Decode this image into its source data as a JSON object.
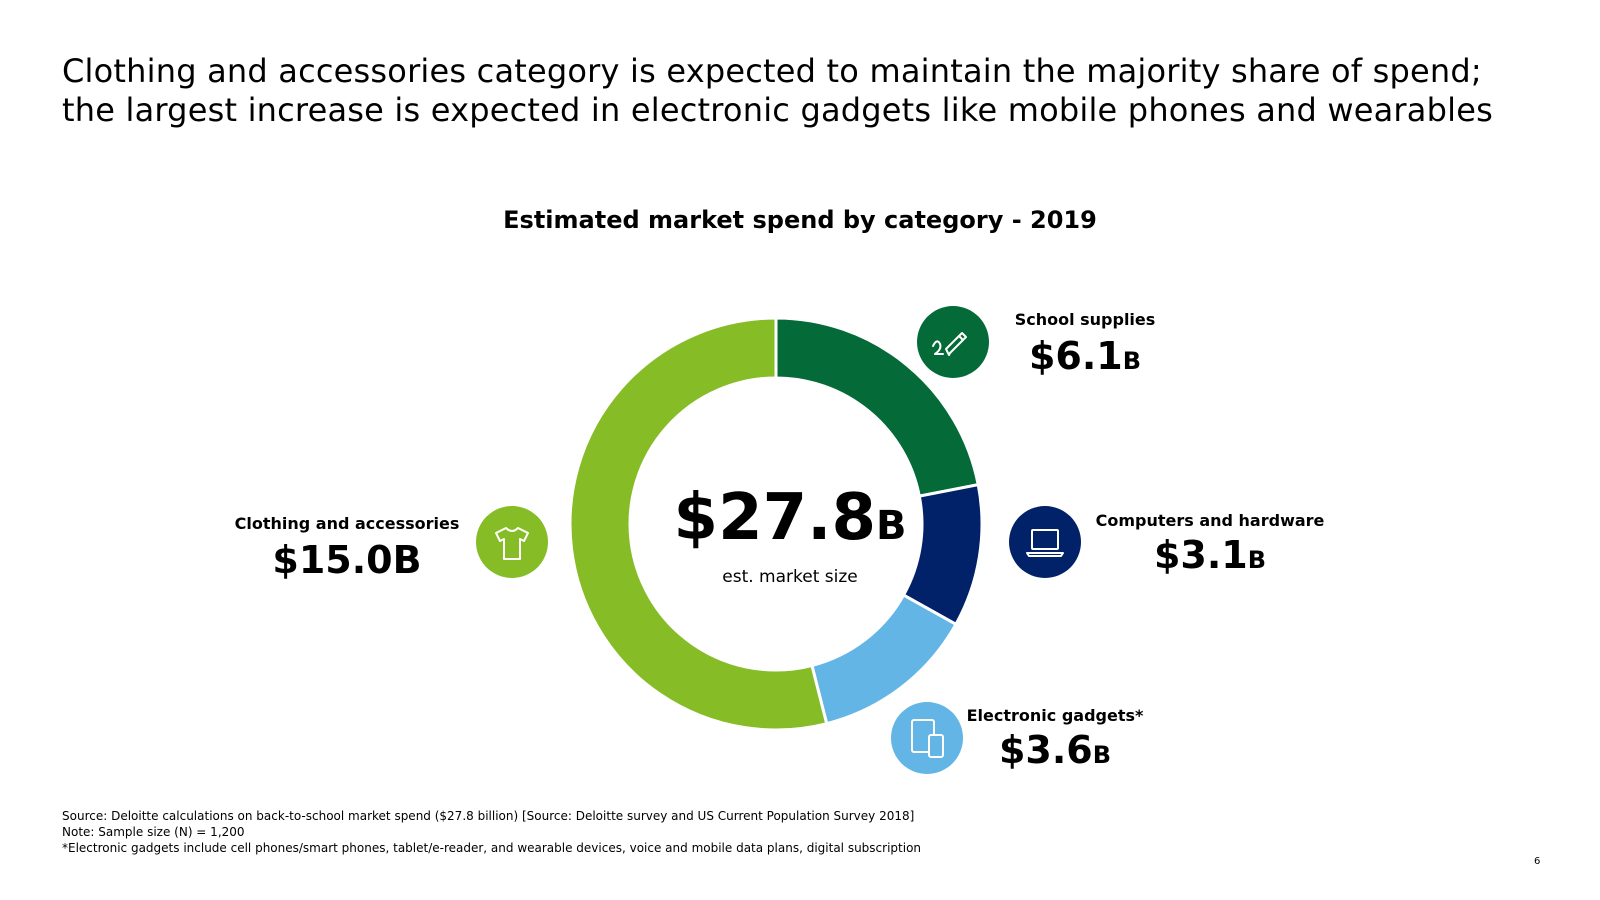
{
  "headline": {
    "line1": "Clothing and accessories category is expected to maintain the majority share of spend;",
    "line2": "the largest increase is expected in electronic gadgets like mobile phones and wearables"
  },
  "center": {
    "amount": "$27.8",
    "unit": "B",
    "label": "est. market size"
  },
  "colors": {
    "school": "#046A38",
    "computers": "#012169",
    "electronics": "#62B5E5",
    "clothing": "#86BC25"
  },
  "chart_data": {
    "type": "pie",
    "title": "Estimated market spend by category - 2019",
    "total": 27.8,
    "unit": "billion USD",
    "categories": [
      "School supplies",
      "Computers and hardware",
      "Electronic gadgets*",
      "Clothing and accessories"
    ],
    "values": [
      6.1,
      3.1,
      3.6,
      15.0
    ],
    "labels": [
      {
        "name": "School supplies",
        "amount": "$6.1",
        "unit": "B",
        "icon": "pencil-icon"
      },
      {
        "name": "Computers and hardware",
        "amount": "$3.1",
        "unit": "B",
        "icon": "laptop-icon"
      },
      {
        "name": "Electronic gadgets*",
        "amount": "$3.6",
        "unit": "B",
        "icon": "tablet-phone-icon"
      },
      {
        "name": "Clothing and accessories",
        "amount": "$15.0B",
        "unit": "",
        "icon": "tshirt-icon"
      }
    ]
  },
  "footnotes": {
    "source": "Source: Deloitte calculations on back-to-school market spend ($27.8 billion) [Source: Deloitte survey and US Current Population Survey 2018]",
    "note": "Note: Sample size (N) = 1,200",
    "asterisk": "*Electronic gadgets include cell phones/smart phones, tablet/e-reader, and wearable devices, voice and mobile data plans, digital subscription"
  },
  "page_number": "6"
}
